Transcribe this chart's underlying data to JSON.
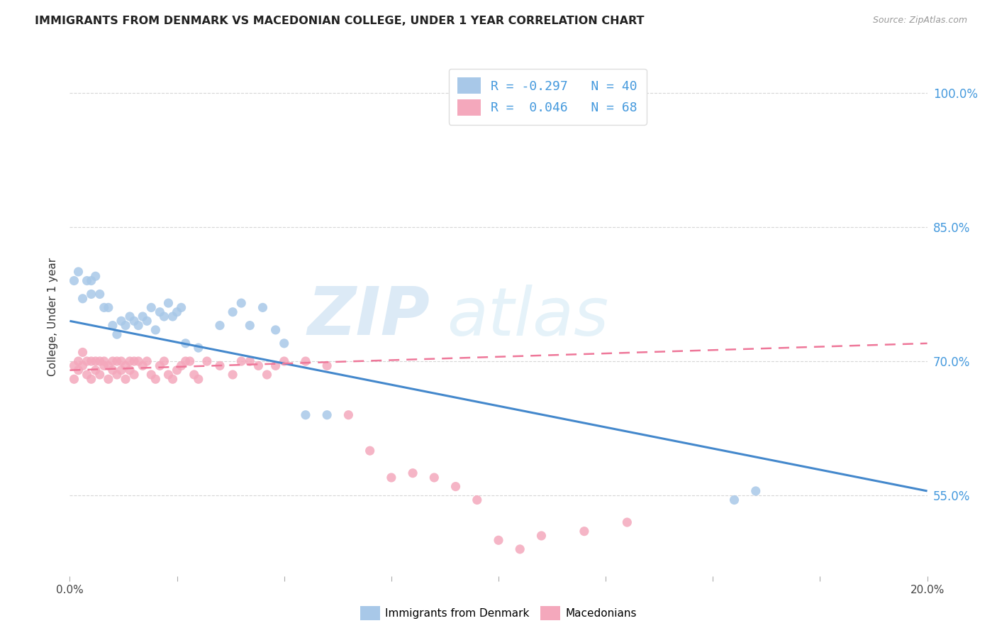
{
  "title": "IMMIGRANTS FROM DENMARK VS MACEDONIAN COLLEGE, UNDER 1 YEAR CORRELATION CHART",
  "source": "Source: ZipAtlas.com",
  "ylabel": "College, Under 1 year",
  "ytick_labels": [
    "55.0%",
    "70.0%",
    "85.0%",
    "100.0%"
  ],
  "ytick_values": [
    0.55,
    0.7,
    0.85,
    1.0
  ],
  "xlim": [
    0.0,
    0.2
  ],
  "ylim": [
    0.46,
    1.04
  ],
  "legend1_r": "-0.297",
  "legend1_n": "40",
  "legend2_r": "0.046",
  "legend2_n": "68",
  "blue_color": "#a8c8e8",
  "pink_color": "#f4a8bc",
  "blue_line_color": "#4488cc",
  "pink_line_color": "#ee7799",
  "legend_text_color": "#4499dd",
  "scatter_blue": {
    "x": [
      0.001,
      0.002,
      0.003,
      0.004,
      0.005,
      0.005,
      0.006,
      0.007,
      0.008,
      0.009,
      0.01,
      0.011,
      0.012,
      0.013,
      0.014,
      0.015,
      0.016,
      0.017,
      0.018,
      0.019,
      0.02,
      0.021,
      0.022,
      0.023,
      0.024,
      0.025,
      0.026,
      0.027,
      0.03,
      0.035,
      0.038,
      0.04,
      0.042,
      0.045,
      0.048,
      0.05,
      0.055,
      0.06,
      0.155,
      0.16
    ],
    "y": [
      0.79,
      0.8,
      0.77,
      0.79,
      0.775,
      0.79,
      0.795,
      0.775,
      0.76,
      0.76,
      0.74,
      0.73,
      0.745,
      0.74,
      0.75,
      0.745,
      0.74,
      0.75,
      0.745,
      0.76,
      0.735,
      0.755,
      0.75,
      0.765,
      0.75,
      0.755,
      0.76,
      0.72,
      0.715,
      0.74,
      0.755,
      0.765,
      0.74,
      0.76,
      0.735,
      0.72,
      0.64,
      0.64,
      0.545,
      0.555
    ]
  },
  "scatter_pink": {
    "x": [
      0.001,
      0.001,
      0.002,
      0.002,
      0.003,
      0.003,
      0.004,
      0.004,
      0.005,
      0.005,
      0.006,
      0.006,
      0.007,
      0.007,
      0.008,
      0.008,
      0.009,
      0.009,
      0.01,
      0.01,
      0.011,
      0.011,
      0.012,
      0.012,
      0.013,
      0.013,
      0.014,
      0.014,
      0.015,
      0.015,
      0.016,
      0.017,
      0.018,
      0.019,
      0.02,
      0.021,
      0.022,
      0.023,
      0.024,
      0.025,
      0.026,
      0.027,
      0.028,
      0.029,
      0.03,
      0.032,
      0.035,
      0.038,
      0.04,
      0.042,
      0.044,
      0.046,
      0.048,
      0.05,
      0.055,
      0.06,
      0.065,
      0.07,
      0.075,
      0.08,
      0.085,
      0.09,
      0.095,
      0.1,
      0.105,
      0.11,
      0.12,
      0.13
    ],
    "y": [
      0.695,
      0.68,
      0.7,
      0.69,
      0.71,
      0.695,
      0.7,
      0.685,
      0.7,
      0.68,
      0.7,
      0.69,
      0.7,
      0.685,
      0.7,
      0.695,
      0.695,
      0.68,
      0.7,
      0.69,
      0.7,
      0.685,
      0.7,
      0.69,
      0.695,
      0.68,
      0.7,
      0.69,
      0.7,
      0.685,
      0.7,
      0.695,
      0.7,
      0.685,
      0.68,
      0.695,
      0.7,
      0.685,
      0.68,
      0.69,
      0.695,
      0.7,
      0.7,
      0.685,
      0.68,
      0.7,
      0.695,
      0.685,
      0.7,
      0.7,
      0.695,
      0.685,
      0.695,
      0.7,
      0.7,
      0.695,
      0.64,
      0.6,
      0.57,
      0.575,
      0.57,
      0.56,
      0.545,
      0.5,
      0.49,
      0.505,
      0.51,
      0.52
    ]
  },
  "blue_line": {
    "x": [
      0.0,
      0.2
    ],
    "y": [
      0.745,
      0.555
    ]
  },
  "pink_line": {
    "x": [
      0.0,
      0.2
    ],
    "y": [
      0.69,
      0.72
    ]
  },
  "xtick_positions": [
    0.0,
    0.025,
    0.05,
    0.075,
    0.1,
    0.125,
    0.15,
    0.175,
    0.2
  ],
  "watermark_text": "ZIP",
  "watermark_text2": "atlas",
  "background_color": "#ffffff",
  "grid_color": "#cccccc"
}
